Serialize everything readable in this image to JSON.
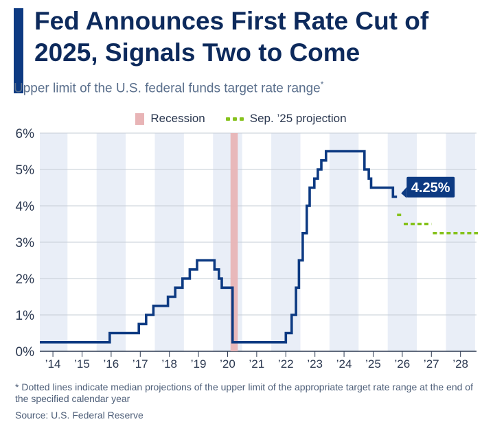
{
  "header": {
    "title": "Fed Announces First Rate Cut of 2025, Signals Two to Come",
    "subtitle": "Upper limit of the U.S. federal funds target rate range",
    "subtitle_mark": "*"
  },
  "legend": {
    "recession_label": "Recession",
    "projection_label": "Sep. ’25 projection"
  },
  "colors": {
    "line": "#0d3a82",
    "projection": "#86c21d",
    "recession": "#e8b4b6",
    "band": "#e9eef7",
    "callout": "#0d3a82"
  },
  "footer": {
    "footnote": "* Dotted lines indicate median projections of the upper limit of the appropriate target rate range at the end of the specified calendar year",
    "source": "Source: U.S. Federal Reserve"
  },
  "chart_data": {
    "type": "line",
    "title": "",
    "xlabel": "",
    "ylabel": "",
    "xlim": [
      2013.55,
      2028.55
    ],
    "ylim": [
      0,
      6
    ],
    "y_ticks": [
      0,
      1,
      2,
      3,
      4,
      5,
      6
    ],
    "y_tick_labels": [
      "0%",
      "1%",
      "2%",
      "3%",
      "4%",
      "5%",
      "6%"
    ],
    "x_ticks": [
      2014,
      2015,
      2016,
      2017,
      2018,
      2019,
      2020,
      2021,
      2022,
      2023,
      2024,
      2025,
      2026,
      2027,
      2028
    ],
    "x_tick_labels": [
      "’14",
      "’15",
      "’16",
      "’17",
      "’18",
      "’19",
      "’20",
      "’21",
      "’22",
      "’23",
      "’24",
      "’25",
      "’26",
      "’27",
      "’28"
    ],
    "grid": true,
    "legend_position": "top-center",
    "callout_label": "4.25%",
    "recession": [
      2020.1,
      2020.35
    ],
    "series": [
      {
        "step": true,
        "points": [
          [
            2013.55,
            0.25
          ],
          [
            2015.95,
            0.25
          ],
          [
            2015.95,
            0.5
          ],
          [
            2016.95,
            0.5
          ],
          [
            2016.95,
            0.75
          ],
          [
            2017.2,
            0.75
          ],
          [
            2017.2,
            1.0
          ],
          [
            2017.45,
            1.0
          ],
          [
            2017.45,
            1.25
          ],
          [
            2017.95,
            1.25
          ],
          [
            2017.95,
            1.5
          ],
          [
            2018.2,
            1.5
          ],
          [
            2018.2,
            1.75
          ],
          [
            2018.45,
            1.75
          ],
          [
            2018.45,
            2.0
          ],
          [
            2018.7,
            2.0
          ],
          [
            2018.7,
            2.25
          ],
          [
            2018.95,
            2.25
          ],
          [
            2018.95,
            2.5
          ],
          [
            2019.55,
            2.5
          ],
          [
            2019.55,
            2.25
          ],
          [
            2019.7,
            2.25
          ],
          [
            2019.7,
            2.0
          ],
          [
            2019.8,
            2.0
          ],
          [
            2019.8,
            1.75
          ],
          [
            2020.17,
            1.75
          ],
          [
            2020.17,
            0.25
          ],
          [
            2022.0,
            0.25
          ],
          [
            2022.0,
            0.5
          ],
          [
            2022.2,
            0.5
          ],
          [
            2022.2,
            1.0
          ],
          [
            2022.35,
            1.0
          ],
          [
            2022.35,
            1.75
          ],
          [
            2022.45,
            1.75
          ],
          [
            2022.45,
            2.5
          ],
          [
            2022.58,
            2.5
          ],
          [
            2022.58,
            3.25
          ],
          [
            2022.72,
            3.25
          ],
          [
            2022.72,
            4.0
          ],
          [
            2022.82,
            4.0
          ],
          [
            2022.82,
            4.5
          ],
          [
            2022.98,
            4.5
          ],
          [
            2022.98,
            4.75
          ],
          [
            2023.1,
            4.75
          ],
          [
            2023.1,
            5.0
          ],
          [
            2023.22,
            5.0
          ],
          [
            2023.22,
            5.25
          ],
          [
            2023.38,
            5.25
          ],
          [
            2023.38,
            5.5
          ],
          [
            2024.7,
            5.5
          ],
          [
            2024.7,
            5.0
          ],
          [
            2024.85,
            5.0
          ],
          [
            2024.85,
            4.75
          ],
          [
            2024.93,
            4.75
          ],
          [
            2024.93,
            4.5
          ],
          [
            2025.68,
            4.5
          ],
          [
            2025.68,
            4.25
          ],
          [
            2025.82,
            4.25
          ]
        ]
      }
    ],
    "projection": [
      {
        "x": [
          2025.82,
          2026.0
        ],
        "y": 3.75
      },
      {
        "x": [
          2026.05,
          2027.0
        ],
        "y": 3.5
      },
      {
        "x": [
          2027.05,
          2028.6
        ],
        "y": 3.25
      }
    ]
  }
}
